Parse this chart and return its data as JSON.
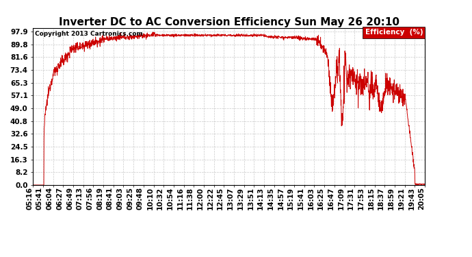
{
  "title": "Inverter DC to AC Conversion Efficiency Sun May 26 20:10",
  "copyright": "Copyright 2013 Cartronics.com",
  "legend_label": "Efficiency  (%)",
  "legend_bg": "#cc0000",
  "legend_text_color": "#ffffff",
  "line_color": "#cc0000",
  "background_color": "#ffffff",
  "grid_color": "#aaaaaa",
  "yticks": [
    0.0,
    8.2,
    16.3,
    24.5,
    32.6,
    40.8,
    49.0,
    57.1,
    65.3,
    73.4,
    81.6,
    89.8,
    97.9
  ],
  "ylim": [
    0,
    100
  ],
  "title_fontsize": 11,
  "tick_fontsize": 7.5,
  "xlabel_rotation": 90,
  "x_labels": [
    "05:16",
    "05:41",
    "06:04",
    "06:27",
    "06:49",
    "07:13",
    "07:56",
    "08:19",
    "08:41",
    "09:03",
    "09:25",
    "09:48",
    "10:10",
    "10:32",
    "10:54",
    "11:16",
    "11:38",
    "12:00",
    "12:22",
    "12:45",
    "13:07",
    "13:29",
    "13:51",
    "14:13",
    "14:35",
    "14:57",
    "15:19",
    "15:41",
    "16:03",
    "16:25",
    "16:47",
    "17:09",
    "17:31",
    "17:53",
    "18:15",
    "18:37",
    "18:59",
    "19:21",
    "19:43",
    "20:05"
  ]
}
